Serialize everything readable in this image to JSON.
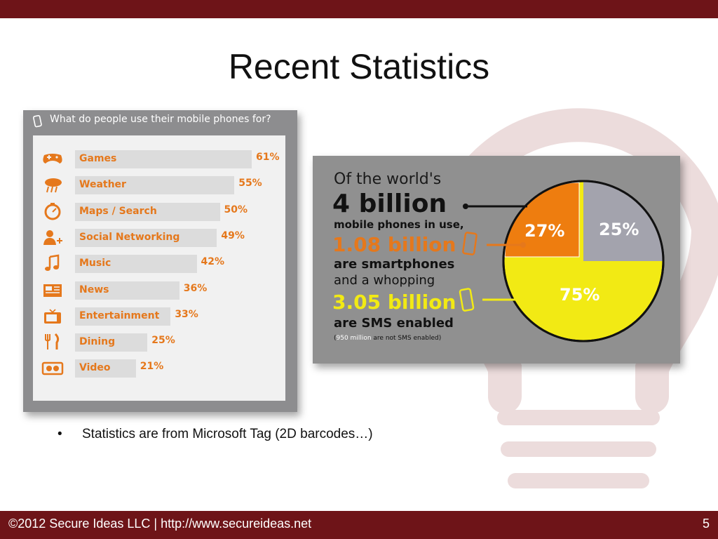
{
  "slide": {
    "title": "Recent Statistics",
    "bullet": "Statistics are from Microsoft Tag (2D barcodes…)",
    "footer": "©2012 Secure Ideas LLC | http://www.secureideas.net",
    "page_number": "5"
  },
  "usage_chart": {
    "heading": "What do people use their mobile phones for?",
    "items": [
      {
        "label": "Games",
        "pct_label": "61%",
        "value": 61,
        "icon": "gamepad-icon"
      },
      {
        "label": "Weather",
        "pct_label": "55%",
        "value": 55,
        "icon": "weather-icon"
      },
      {
        "label": "Maps / Search",
        "pct_label": "50%",
        "value": 50,
        "icon": "compass-icon"
      },
      {
        "label": "Social Networking",
        "pct_label": "49%",
        "value": 49,
        "icon": "add-person-icon"
      },
      {
        "label": "Music",
        "pct_label": "42%",
        "value": 42,
        "icon": "music-note-icon"
      },
      {
        "label": "News",
        "pct_label": "36%",
        "value": 36,
        "icon": "newspaper-icon"
      },
      {
        "label": "Entertainment",
        "pct_label": "33%",
        "value": 33,
        "icon": "tv-icon"
      },
      {
        "label": "Dining",
        "pct_label": "25%",
        "value": 25,
        "icon": "fork-knife-icon"
      },
      {
        "label": "Video",
        "pct_label": "21%",
        "value": 21,
        "icon": "video-icon"
      }
    ]
  },
  "pie_infographic": {
    "line1": "Of the world's",
    "line2": "4 billion",
    "line3a": "mobile phones",
    "line3b": " in use,",
    "line4": "1.08 billion",
    "line5a": "are ",
    "line5b": "smartphones",
    "line6": "and a whopping",
    "line7": "3.05 billion",
    "line8a": "are ",
    "line8b": "SMS enabled",
    "note_open": "(",
    "note_num": "950 million",
    "note_mid": " are ",
    "note_end": "not SMS enabled)",
    "slices": [
      {
        "label": "27%",
        "value": 27
      },
      {
        "label": "25%",
        "value": 25
      },
      {
        "label": "75%",
        "value": 75
      }
    ]
  },
  "colors": {
    "brand_bar": "#6e1418",
    "accent_orange": "#e5781c",
    "pie_orange": "#ee7d0f",
    "pie_yellow": "#f2ea14",
    "pie_gray": "#a3a3ad",
    "panel_gray": "#909090",
    "bar_gray": "#dcdcdc"
  }
}
